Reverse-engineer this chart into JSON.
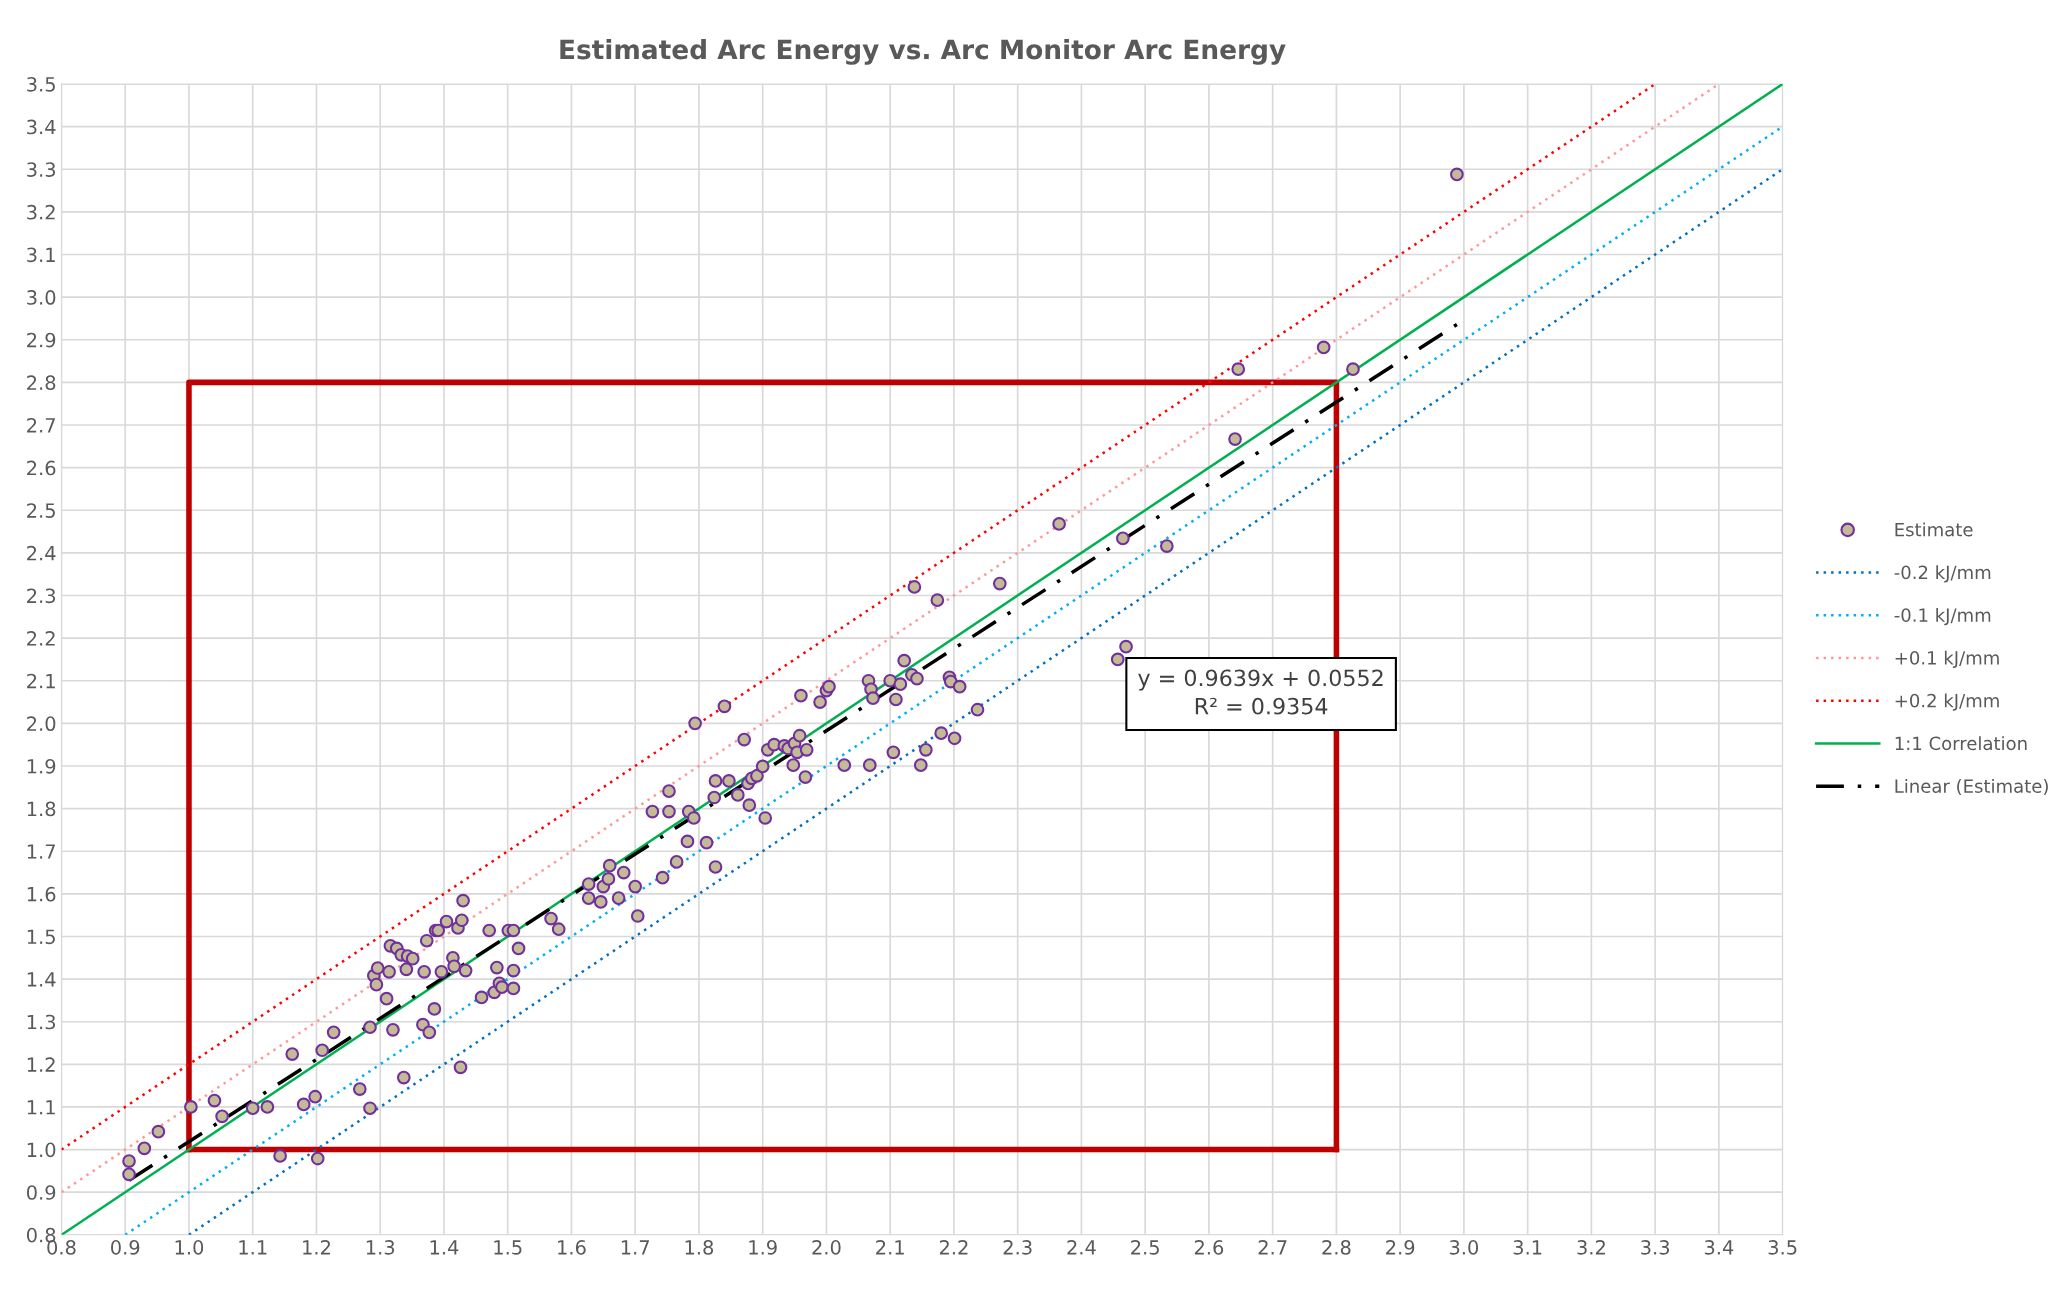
{
  "chart_data": {
    "type": "scatter",
    "title": "Estimated Arc Energy vs. Arc Monitor Arc Energy",
    "annotations": [
      "y = 0.9639x + 0.0552\nR² = 0.9354"
    ],
    "xlim": [
      0.8,
      3.5
    ],
    "ylim": [
      0.8,
      3.5
    ],
    "xticks": [
      0.8,
      0.9,
      {
        "value": 1,
        "label": "1.0"
      },
      1.1,
      1.2,
      1.3,
      1.4,
      1.5,
      1.6,
      1.7,
      1.8,
      1.9,
      {
        "value": 2,
        "label": "2.0"
      },
      2.1,
      2.2,
      2.3,
      2.4,
      2.5,
      2.6,
      2.7,
      2.8,
      2.9,
      {
        "value": 3,
        "label": "3.0"
      },
      3.1,
      3.2,
      3.3,
      3.4,
      3.5
    ],
    "yticks": [
      0.8,
      0.9,
      {
        "value": 1,
        "label": "1.0"
      },
      1.1,
      1.2,
      1.3,
      1.4,
      1.5,
      1.6,
      1.7,
      1.8,
      1.9,
      {
        "value": 2,
        "label": "2.0"
      },
      2.1,
      2.2,
      2.3,
      2.4,
      2.5,
      2.6,
      2.7,
      2.8,
      2.9,
      {
        "value": 3,
        "label": "3.0"
      },
      3.1,
      3.2,
      3.3,
      3.4,
      3.5
    ],
    "grid": true,
    "legend": "right",
    "series": [
      {
        "name": "Estimate",
        "marker": "circle",
        "color": "#c4bb96",
        "x": [
          0.906,
          0.906,
          0.93,
          0.952,
          1.003,
          1.04,
          1.052,
          1.1,
          1.123,
          1.143,
          1.162,
          1.18,
          1.198,
          1.202,
          1.209,
          1.227,
          1.268,
          1.284,
          1.284,
          1.29,
          1.296,
          1.294,
          1.31,
          1.314,
          1.316,
          1.32,
          1.326,
          1.333,
          1.337,
          1.341,
          1.343,
          1.351,
          1.367,
          1.369,
          1.373,
          1.377,
          1.385,
          1.387,
          1.391,
          1.396,
          1.404,
          1.414,
          1.416,
          1.422,
          1.426,
          1.428,
          1.43,
          1.434,
          1.459,
          1.471,
          1.479,
          1.483,
          1.487,
          1.491,
          1.501,
          1.509,
          1.509,
          1.509,
          1.517,
          1.568,
          1.58,
          1.627,
          1.627,
          1.646,
          1.65,
          1.658,
          1.66,
          1.674,
          1.682,
          1.7,
          1.704,
          1.727,
          1.743,
          1.753,
          1.753,
          1.765,
          1.782,
          1.784,
          1.792,
          1.794,
          1.812,
          1.824,
          1.826,
          1.826,
          1.84,
          1.847,
          1.861,
          1.871,
          1.877,
          1.879,
          1.883,
          1.891,
          1.9,
          1.904,
          1.908,
          1.918,
          1.934,
          1.94,
          1.95,
          1.948,
          1.954,
          1.958,
          1.96,
          1.967,
          1.969,
          1.99,
          2.0,
          2.004,
          2.028,
          2.066,
          2.068,
          2.07,
          2.073,
          2.1,
          2.105,
          2.109,
          2.116,
          2.122,
          2.134,
          2.138,
          2.142,
          2.148,
          2.156,
          2.174,
          2.18,
          2.193,
          2.195,
          2.201,
          2.209,
          2.237,
          2.272,
          2.365,
          2.457,
          2.465,
          2.47,
          2.534,
          2.641,
          2.646,
          2.78,
          2.826,
          2.989
        ],
        "values": [
          0.973,
          0.942,
          1.003,
          1.042,
          1.1,
          1.115,
          1.078,
          1.097,
          1.1,
          0.985,
          1.224,
          1.106,
          1.124,
          0.979,
          1.233,
          1.275,
          1.142,
          1.287,
          1.097,
          1.408,
          1.426,
          1.387,
          1.354,
          1.417,
          1.478,
          1.281,
          1.472,
          1.457,
          1.169,
          1.423,
          1.454,
          1.448,
          1.293,
          1.417,
          1.49,
          1.275,
          1.33,
          1.514,
          1.514,
          1.417,
          1.535,
          1.45,
          1.43,
          1.52,
          1.193,
          1.538,
          1.584,
          1.42,
          1.357,
          1.514,
          1.369,
          1.427,
          1.39,
          1.381,
          1.514,
          1.514,
          1.378,
          1.42,
          1.472,
          1.542,
          1.517,
          1.623,
          1.59,
          1.581,
          1.617,
          1.635,
          1.666,
          1.59,
          1.65,
          1.617,
          1.548,
          1.793,
          1.638,
          1.841,
          1.793,
          1.675,
          1.723,
          1.793,
          1.778,
          2.0,
          1.72,
          1.826,
          1.663,
          1.865,
          2.04,
          1.865,
          1.832,
          1.962,
          1.859,
          1.808,
          1.871,
          1.877,
          1.899,
          1.778,
          1.938,
          1.95,
          1.947,
          1.941,
          1.953,
          1.902,
          1.932,
          1.971,
          2.065,
          1.874,
          1.938,
          2.05,
          2.077,
          2.086,
          1.902,
          2.1,
          1.902,
          2.08,
          2.059,
          2.1,
          1.932,
          2.056,
          2.092,
          2.147,
          2.114,
          2.32,
          2.105,
          1.902,
          1.938,
          2.289,
          1.977,
          2.108,
          2.098,
          1.965,
          2.086,
          2.032,
          2.328,
          2.468,
          2.15,
          2.434,
          2.18,
          2.416,
          2.667,
          2.831,
          2.882,
          2.831,
          3.288
        ]
      },
      {
        "name": "-0.2 kJ/mm",
        "type": "line",
        "line_style": "dotted",
        "color": "#0070c0",
        "x": [
          1.0,
          3.5
        ],
        "values": [
          0.8,
          3.3
        ]
      },
      {
        "name": "-0.1 kJ/mm",
        "type": "line",
        "line_style": "dotted",
        "color": "#00b0f0",
        "x": [
          0.9,
          3.5
        ],
        "values": [
          0.8,
          3.4
        ]
      },
      {
        "name": "+0.1 kJ/mm",
        "type": "line",
        "line_style": "dotted",
        "color": "#ff9999",
        "x": [
          0.8,
          3.4
        ],
        "values": [
          0.9,
          3.5
        ]
      },
      {
        "name": "+0.2 kJ/mm",
        "type": "line",
        "line_style": "dotted",
        "color": "#ff0000",
        "x": [
          0.8,
          3.3
        ],
        "values": [
          1.0,
          3.5
        ]
      },
      {
        "name": "1:1 Correlation",
        "type": "line",
        "line_style": "solid",
        "color": "#00b050",
        "x": [
          0.8,
          3.5
        ],
        "values": [
          0.8,
          3.5
        ]
      },
      {
        "name": "Linear (Estimate)",
        "type": "line",
        "line_style": "dashdot",
        "color": "#000000",
        "x": [
          0.906,
          2.989
        ],
        "values": [
          0.928,
          2.936
        ]
      },
      {
        "type": "line",
        "line_style": "solid",
        "color": "#c00000",
        "x": [
          1.0,
          1.0,
          2.8,
          2.8
        ],
        "values": [
          1.0,
          2.8,
          2.8,
          1.0
        ]
      },
      {
        "type": "line",
        "line_style": "solid",
        "color": "#c00000",
        "x": [
          1.0,
          2.8
        ],
        "values": [
          1.0,
          1.0
        ]
      }
    ]
  }
}
